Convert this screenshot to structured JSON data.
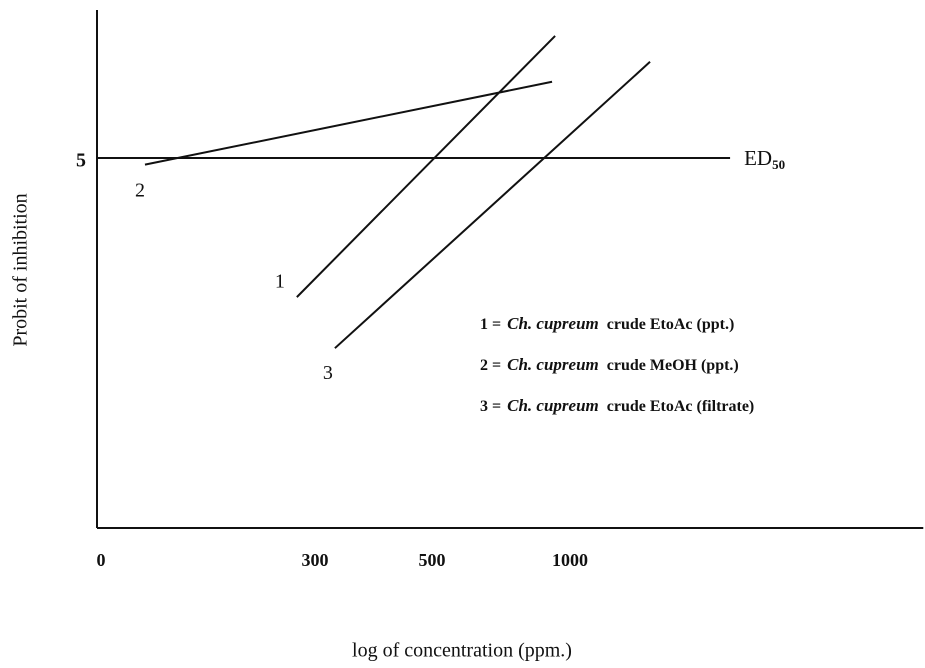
{
  "chart_data": {
    "type": "line",
    "x_label": "log of concentration (ppm.)",
    "y_label": "Probit of inhibition",
    "xlim": [
      0,
      2280
    ],
    "xticks": [
      0,
      300,
      500,
      1000
    ],
    "ylim": [
      0,
      7
    ],
    "yticks": [
      5
    ],
    "grid": false,
    "color": "#111111",
    "series": [
      {
        "name": "1",
        "legend_key": "1 =",
        "legend_species": "Ch. cupreum",
        "legend_text": "crude EtoAc  (ppt.)",
        "x": [
          275,
          946
        ],
        "y": [
          3.12,
          6.65
        ]
      },
      {
        "name": "2",
        "legend_key": "2 =",
        "legend_species": "Ch. cupreum",
        "legend_text": "crude MeOH (ppt.)",
        "x": [
          66,
          935
        ],
        "y": [
          4.91,
          6.03
        ]
      },
      {
        "name": "3",
        "legend_key": "3 =",
        "legend_species": "Ch. cupreum",
        "legend_text": "crude EtoAc  (filtrate)",
        "x": [
          334,
          1290
        ],
        "y": [
          2.43,
          6.3
        ]
      }
    ],
    "ed50_line": {
      "x": [
        0,
        1580
      ],
      "y": [
        5,
        5
      ],
      "label": "ED",
      "label_sub": "50"
    }
  }
}
